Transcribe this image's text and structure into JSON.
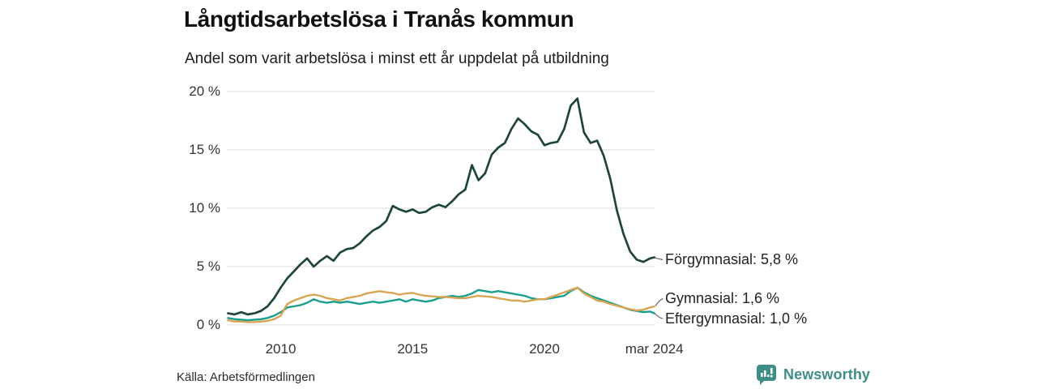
{
  "header": {
    "title": "Långtidsarbetslösa i Tranås kommun",
    "subtitle": "Andel som varit arbetslösa i minst ett år uppdelat på utbildning"
  },
  "footer": {
    "source": "Källa: Arbetsförmedlingen",
    "brand": "Newsworthy"
  },
  "chart_data": {
    "type": "line",
    "title": "Långtidsarbetslösa i Tranås kommun",
    "subtitle": "Andel som varit arbetslösa i minst ett år uppdelat på utbildning",
    "xlabel": "",
    "ylabel": "",
    "grid": "horizontal-only",
    "legend_position": "end-of-line-labels",
    "x_start": 2008.0,
    "x_step": 0.25,
    "x_end": 2024.17,
    "xlim": [
      2008.0,
      2024.17
    ],
    "ylim": [
      0,
      20
    ],
    "yticks": [
      {
        "label": "20 %",
        "value": 20
      },
      {
        "label": "15 %",
        "value": 15
      },
      {
        "label": "10 %",
        "value": 10
      },
      {
        "label": "5 %",
        "value": 5
      },
      {
        "label": "0 %",
        "value": 0
      }
    ],
    "xticks": [
      {
        "label": "2010",
        "value": 2010
      },
      {
        "label": "2015",
        "value": 2015
      },
      {
        "label": "2020",
        "value": 2020
      },
      {
        "label": "mar 2024",
        "value": 2024.17
      }
    ],
    "series": [
      {
        "name": "Förgymnasial",
        "end_label": "Förgymnasial: 5,8 %",
        "end_value": "5,8 %",
        "color": "#1f4539",
        "values": [
          1.0,
          0.9,
          1.1,
          0.9,
          1.0,
          1.2,
          1.6,
          2.3,
          3.2,
          4.0,
          4.6,
          5.2,
          5.7,
          5.0,
          5.5,
          5.9,
          5.5,
          6.2,
          6.5,
          6.6,
          7.0,
          7.6,
          8.1,
          8.4,
          8.9,
          10.2,
          9.9,
          9.7,
          9.9,
          9.6,
          9.7,
          10.1,
          10.3,
          10.1,
          10.6,
          11.2,
          11.6,
          13.7,
          12.4,
          13.0,
          14.6,
          15.2,
          15.6,
          16.8,
          17.7,
          17.2,
          16.6,
          16.3,
          15.4,
          15.6,
          15.7,
          16.8,
          18.8,
          19.4,
          16.5,
          15.6,
          15.8,
          14.5,
          12.5,
          9.8,
          7.8,
          6.3,
          5.6,
          5.4,
          5.7,
          5.8
        ]
      },
      {
        "name": "Gymnasial",
        "end_label": "Gymnasial: 1,6 %",
        "end_value": "1,6 %",
        "color": "#d6a452",
        "values": [
          0.4,
          0.3,
          0.3,
          0.25,
          0.25,
          0.3,
          0.35,
          0.5,
          0.8,
          1.8,
          2.1,
          2.3,
          2.5,
          2.6,
          2.5,
          2.3,
          2.2,
          2.1,
          2.3,
          2.4,
          2.5,
          2.7,
          2.8,
          2.9,
          2.8,
          2.75,
          2.6,
          2.7,
          2.75,
          2.6,
          2.5,
          2.45,
          2.4,
          2.4,
          2.35,
          2.3,
          2.3,
          2.4,
          2.5,
          2.45,
          2.4,
          2.3,
          2.2,
          2.1,
          2.1,
          2.0,
          2.1,
          2.2,
          2.2,
          2.4,
          2.6,
          2.8,
          3.0,
          3.2,
          2.7,
          2.4,
          2.1,
          2.0,
          1.8,
          1.65,
          1.5,
          1.35,
          1.25,
          1.3,
          1.5,
          1.6
        ]
      },
      {
        "name": "Eftergymnasial",
        "end_label": "Eftergymnasial: 1,0 %",
        "end_value": "1,0 %",
        "color": "#1a9e8c",
        "values": [
          0.6,
          0.5,
          0.45,
          0.4,
          0.45,
          0.5,
          0.6,
          0.8,
          1.1,
          1.5,
          1.6,
          1.7,
          1.9,
          2.2,
          2.0,
          1.9,
          2.0,
          1.9,
          2.0,
          1.9,
          1.8,
          1.9,
          2.0,
          1.9,
          2.0,
          2.1,
          2.2,
          2.0,
          2.2,
          2.1,
          2.0,
          2.1,
          2.3,
          2.4,
          2.5,
          2.4,
          2.5,
          2.7,
          3.0,
          2.9,
          2.8,
          2.9,
          2.8,
          2.7,
          2.6,
          2.5,
          2.3,
          2.2,
          2.2,
          2.3,
          2.4,
          2.5,
          2.9,
          3.2,
          2.8,
          2.5,
          2.3,
          2.1,
          1.9,
          1.7,
          1.5,
          1.3,
          1.2,
          1.1,
          1.15,
          1.0
        ]
      }
    ],
    "colors": {
      "grid": "#dadada",
      "text": "#333333",
      "brand_teal": "#3e8e85"
    }
  }
}
